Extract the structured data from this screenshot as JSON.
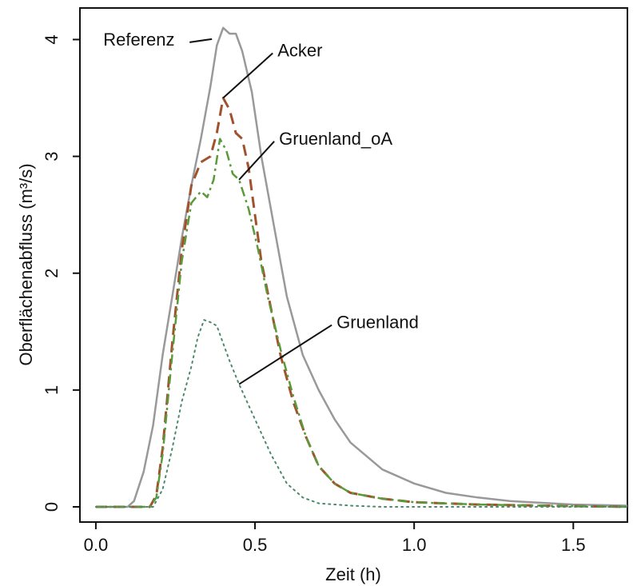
{
  "chart_data": {
    "type": "line",
    "xlabel": "Zeit (h)",
    "ylabel": "Oberflächenabfluss (m³/s)",
    "xlim": [
      -0.05,
      1.67
    ],
    "ylim": [
      -0.13,
      4.27
    ],
    "xticks": [
      0.0,
      0.5,
      1.0,
      1.5
    ],
    "xtick_labels": [
      "0.0",
      "0.5",
      "1.0",
      "1.5"
    ],
    "yticks": [
      0,
      1,
      2,
      3,
      4
    ],
    "ytick_labels": [
      "0",
      "1",
      "2",
      "3",
      "4"
    ],
    "grid": false,
    "legend": "none (direct labels)",
    "series": [
      {
        "name": "Referenz",
        "color": "#999999",
        "style": "solid",
        "x": [
          0.0,
          0.1,
          0.12,
          0.15,
          0.18,
          0.21,
          0.24,
          0.27,
          0.3,
          0.33,
          0.36,
          0.38,
          0.4,
          0.42,
          0.44,
          0.46,
          0.49,
          0.52,
          0.56,
          0.6,
          0.65,
          0.7,
          0.75,
          0.8,
          0.9,
          1.0,
          1.1,
          1.2,
          1.3,
          1.5,
          1.67
        ],
        "y": [
          0.0,
          0.0,
          0.05,
          0.3,
          0.7,
          1.3,
          1.8,
          2.3,
          2.75,
          3.15,
          3.6,
          3.95,
          4.1,
          4.05,
          4.05,
          3.9,
          3.55,
          3.0,
          2.4,
          1.8,
          1.3,
          1.0,
          0.75,
          0.55,
          0.32,
          0.2,
          0.12,
          0.08,
          0.05,
          0.02,
          0.01
        ]
      },
      {
        "name": "Acker",
        "color": "#a0522d",
        "style": "dashed",
        "x": [
          0.0,
          0.17,
          0.19,
          0.21,
          0.24,
          0.27,
          0.3,
          0.33,
          0.36,
          0.38,
          0.4,
          0.42,
          0.44,
          0.46,
          0.48,
          0.5,
          0.52,
          0.55,
          0.58,
          0.62,
          0.66,
          0.7,
          0.75,
          0.8,
          0.9,
          1.0,
          1.2,
          1.4,
          1.67
        ],
        "y": [
          0.0,
          0.0,
          0.1,
          0.5,
          1.4,
          2.2,
          2.75,
          2.95,
          3.0,
          3.2,
          3.5,
          3.4,
          3.2,
          3.15,
          2.9,
          2.5,
          2.1,
          1.7,
          1.3,
          0.9,
          0.6,
          0.35,
          0.2,
          0.12,
          0.07,
          0.04,
          0.02,
          0.01,
          0.0
        ]
      },
      {
        "name": "Gruenland_oA",
        "color": "#5a9a3a",
        "style": "dotdash",
        "x": [
          0.0,
          0.17,
          0.19,
          0.21,
          0.24,
          0.27,
          0.3,
          0.33,
          0.35,
          0.37,
          0.39,
          0.41,
          0.43,
          0.45,
          0.48,
          0.51,
          0.54,
          0.58,
          0.62,
          0.66,
          0.7,
          0.75,
          0.8,
          0.9,
          1.0,
          1.2,
          1.4,
          1.67
        ],
        "y": [
          0.0,
          0.0,
          0.08,
          0.45,
          1.3,
          2.1,
          2.6,
          2.7,
          2.65,
          2.8,
          3.15,
          3.05,
          2.85,
          2.8,
          2.55,
          2.2,
          1.8,
          1.35,
          0.95,
          0.6,
          0.35,
          0.2,
          0.12,
          0.07,
          0.04,
          0.02,
          0.01,
          0.0
        ]
      },
      {
        "name": "Gruenland",
        "color": "#4a8a6a",
        "style": "dotted",
        "x": [
          0.0,
          0.18,
          0.21,
          0.24,
          0.27,
          0.3,
          0.32,
          0.34,
          0.36,
          0.38,
          0.4,
          0.42,
          0.45,
          0.5,
          0.55,
          0.6,
          0.65,
          0.7,
          0.8,
          0.9,
          1.0,
          1.2,
          1.67
        ],
        "y": [
          0.0,
          0.0,
          0.15,
          0.5,
          0.9,
          1.2,
          1.45,
          1.6,
          1.58,
          1.55,
          1.4,
          1.25,
          1.05,
          0.75,
          0.45,
          0.2,
          0.08,
          0.03,
          0.01,
          0.0,
          0.0,
          0.0,
          0.0
        ]
      }
    ],
    "annotations": [
      {
        "text": "Referenz",
        "series": "Referenz"
      },
      {
        "text": "Acker",
        "series": "Acker"
      },
      {
        "text": "Gruenland_oA",
        "series": "Gruenland_oA"
      },
      {
        "text": "Gruenland",
        "series": "Gruenland"
      }
    ]
  }
}
